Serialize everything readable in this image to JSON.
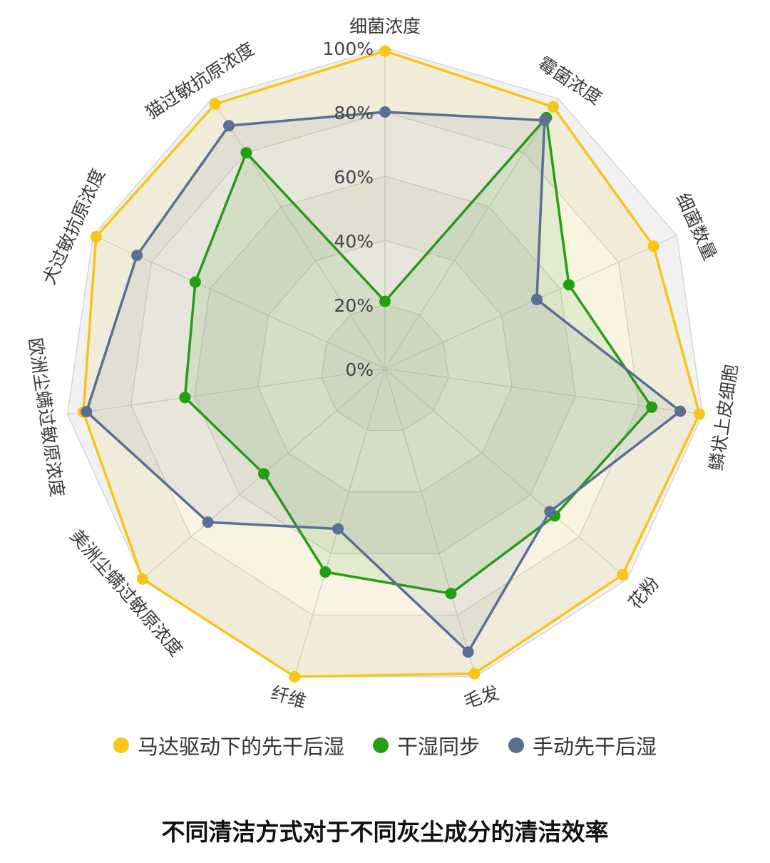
{
  "chart_data": {
    "type": "radar",
    "title": "不同清洁方式对于不同灰尘成分的清洁效率",
    "axes": [
      "细菌浓度",
      "霉菌浓度",
      "细菌数量",
      "鳞状上皮细胞",
      "花粉",
      "毛发",
      "纤维",
      "美洲尘螨过敏原浓度",
      "欧洲尘螨过敏原浓度",
      "犬过敏抗原浓度",
      "猫过敏抗原浓度"
    ],
    "ticks": [
      "0%",
      "20%",
      "40%",
      "60%",
      "80%",
      "100%"
    ],
    "range": [
      0,
      100
    ],
    "legend_position": "bottom",
    "series": [
      {
        "name": "马达驱动下的先干后湿",
        "color": "#F5C518",
        "values": [
          99,
          97,
          92,
          99,
          98,
          99,
          100,
          100,
          95,
          99,
          98
        ]
      },
      {
        "name": "干湿同步",
        "color": "#22A011",
        "values": [
          21,
          93,
          63,
          84,
          70,
          73,
          66,
          50,
          63,
          65,
          80
        ]
      },
      {
        "name": "手动先干后湿",
        "color": "#5B6E96",
        "values": [
          80,
          92,
          52,
          93,
          68,
          92,
          52,
          73,
          94,
          85,
          90
        ]
      }
    ]
  }
}
